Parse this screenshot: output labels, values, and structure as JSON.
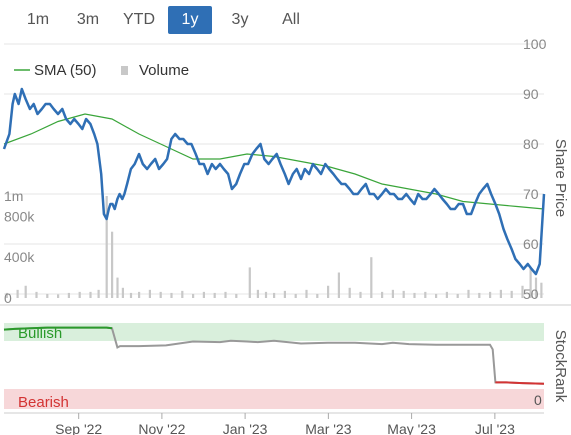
{
  "range_selector": {
    "buttons": [
      "1m",
      "3m",
      "YTD",
      "1y",
      "3y",
      "All"
    ],
    "active": "1y"
  },
  "legend": {
    "sma_label": "SMA (50)",
    "volume_label": "Volume"
  },
  "colors": {
    "price": "#2f6fb5",
    "sma": "#3aa53a",
    "volume": "#c8c8c8",
    "rank_gray": "#999999",
    "rank_bull": "#2a9a2a",
    "rank_bear": "#d33333",
    "bull_band": "#d9efdc",
    "bear_band": "#f7d7d9",
    "active_button": "#2f6fb5"
  },
  "chart_data": {
    "type": "line",
    "ylabel": "Share Price",
    "ylim": [
      50,
      100
    ],
    "price_ticks": [
      "100",
      "90",
      "80",
      "70",
      "60",
      "50"
    ],
    "volume_ticks": [
      "1m",
      "800k",
      "400k",
      "0"
    ],
    "x_labels": [
      "Sep '22",
      "Nov '22",
      "Jan '23",
      "Mar '23",
      "May '23",
      "Jul '23"
    ],
    "x_tick_t": [
      0.1383,
      0.2924,
      0.4465,
      0.6007,
      0.7548,
      0.909
    ],
    "series": [
      {
        "name": "Price",
        "t": [
          0,
          0.01,
          0.016,
          0.02,
          0.027,
          0.033,
          0.04,
          0.048,
          0.055,
          0.062,
          0.07,
          0.077,
          0.085,
          0.092,
          0.1,
          0.108,
          0.115,
          0.123,
          0.13,
          0.138,
          0.145,
          0.152,
          0.16,
          0.167,
          0.173,
          0.18,
          0.185,
          0.19,
          0.194,
          0.197,
          0.201,
          0.205,
          0.21,
          0.214,
          0.219,
          0.223,
          0.228,
          0.235,
          0.242,
          0.25,
          0.257,
          0.265,
          0.272,
          0.28,
          0.287,
          0.295,
          0.302,
          0.31,
          0.317,
          0.325,
          0.332,
          0.34,
          0.347,
          0.355,
          0.362,
          0.37,
          0.377,
          0.385,
          0.392,
          0.4,
          0.407,
          0.415,
          0.422,
          0.43,
          0.437,
          0.445,
          0.452,
          0.46,
          0.467,
          0.475,
          0.482,
          0.49,
          0.497,
          0.505,
          0.512,
          0.52,
          0.527,
          0.535,
          0.542,
          0.55,
          0.557,
          0.565,
          0.572,
          0.58,
          0.587,
          0.595,
          0.602,
          0.61,
          0.617,
          0.625,
          0.632,
          0.64,
          0.647,
          0.655,
          0.662,
          0.67,
          0.677,
          0.685,
          0.692,
          0.7,
          0.707,
          0.715,
          0.722,
          0.73,
          0.737,
          0.745,
          0.752,
          0.76,
          0.767,
          0.775,
          0.782,
          0.79,
          0.797,
          0.805,
          0.812,
          0.82,
          0.827,
          0.835,
          0.842,
          0.85,
          0.857,
          0.865,
          0.872,
          0.88,
          0.887,
          0.895,
          0.902,
          0.91,
          0.917,
          0.925,
          0.932,
          0.94,
          0.947,
          0.955,
          0.962,
          0.97,
          0.977,
          0.985,
          0.992,
          1
        ],
        "values": [
          79,
          82,
          88,
          90,
          88,
          91,
          89,
          87,
          88,
          86,
          87,
          88,
          88,
          87,
          86,
          87,
          85,
          84,
          85,
          84,
          83,
          85,
          84,
          82,
          80,
          74,
          66,
          65,
          67,
          68,
          68,
          67,
          69,
          70,
          69,
          70,
          72,
          75,
          76,
          78,
          76,
          75,
          76,
          77,
          75,
          76,
          77,
          81,
          82,
          81,
          81,
          80,
          80,
          78,
          76,
          76,
          74,
          76,
          75,
          76,
          75,
          74,
          71,
          72,
          74,
          76,
          76,
          78,
          79,
          80,
          77,
          76,
          77,
          78,
          76,
          74,
          72,
          74,
          75,
          73,
          75,
          74,
          76,
          75,
          74,
          76,
          75,
          74,
          73,
          72,
          72,
          71,
          70,
          70,
          71,
          72,
          70,
          70,
          69,
          70,
          71,
          70,
          70,
          69,
          69,
          70,
          69,
          68,
          70,
          69,
          69,
          70,
          71,
          70,
          69,
          68,
          67,
          67,
          68,
          68,
          66,
          66,
          68,
          70,
          71,
          72,
          70,
          68,
          66,
          63,
          61,
          59,
          57,
          56,
          55,
          56,
          55,
          54,
          56,
          70
        ]
      },
      {
        "name": "SMA (50)",
        "t": [
          0,
          0.05,
          0.1,
          0.15,
          0.2,
          0.25,
          0.3,
          0.35,
          0.4,
          0.45,
          0.5,
          0.55,
          0.6,
          0.65,
          0.7,
          0.75,
          0.8,
          0.85,
          0.9,
          0.95,
          1
        ],
        "values": [
          80,
          82,
          84.5,
          86,
          85,
          82,
          79.5,
          77,
          77,
          78,
          77.5,
          76.5,
          75.5,
          74,
          72,
          71,
          70,
          68.5,
          68,
          67.5,
          67
        ]
      }
    ],
    "volume": {
      "t": [
        0.005,
        0.025,
        0.04,
        0.06,
        0.08,
        0.1,
        0.12,
        0.14,
        0.16,
        0.175,
        0.19,
        0.2,
        0.21,
        0.22,
        0.235,
        0.25,
        0.27,
        0.29,
        0.31,
        0.33,
        0.35,
        0.37,
        0.39,
        0.41,
        0.43,
        0.455,
        0.47,
        0.485,
        0.5,
        0.52,
        0.54,
        0.56,
        0.58,
        0.6,
        0.62,
        0.64,
        0.66,
        0.68,
        0.7,
        0.72,
        0.74,
        0.76,
        0.78,
        0.8,
        0.82,
        0.84,
        0.86,
        0.88,
        0.9,
        0.92,
        0.94,
        0.96,
        0.975,
        0.985,
        0.995
      ],
      "values": [
        50,
        80,
        120,
        60,
        40,
        35,
        50,
        60,
        60,
        80,
        1000,
        650,
        200,
        100,
        50,
        60,
        80,
        60,
        50,
        70,
        40,
        60,
        50,
        60,
        40,
        300,
        80,
        60,
        50,
        70,
        40,
        80,
        40,
        120,
        250,
        100,
        60,
        400,
        60,
        80,
        70,
        50,
        60,
        40,
        60,
        40,
        80,
        50,
        60,
        80,
        70,
        120,
        300,
        200,
        150
      ]
    },
    "stockrank": {
      "t": [
        0,
        0.02,
        0.05,
        0.08,
        0.1,
        0.13,
        0.16,
        0.19,
        0.2,
        0.21,
        0.215,
        0.25,
        0.3,
        0.35,
        0.4,
        0.42,
        0.45,
        0.47,
        0.5,
        0.55,
        0.6,
        0.65,
        0.7,
        0.72,
        0.75,
        0.8,
        0.85,
        0.9,
        0.905,
        0.91,
        0.93,
        0.96,
        1
      ],
      "values": [
        90,
        91,
        92,
        93,
        93,
        93,
        93,
        93,
        92,
        63,
        65,
        65,
        66,
        72,
        71,
        73,
        72,
        71,
        73,
        69,
        70,
        70,
        68,
        70,
        68,
        67,
        67,
        67,
        60,
        10,
        10,
        9,
        8
      ],
      "ylim": [
        0,
        100
      ],
      "axis_label": "StockRank",
      "zero_label": "0",
      "bullish_label": "Bullish",
      "bearish_label": "Bearish"
    }
  }
}
